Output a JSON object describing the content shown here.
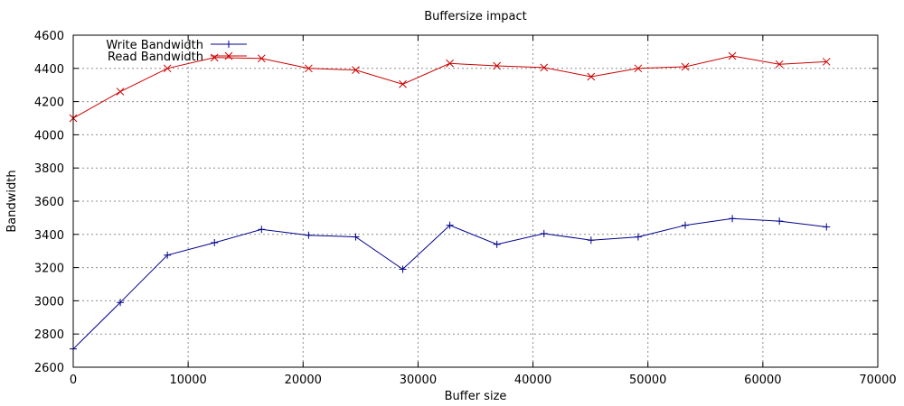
{
  "chart_data": {
    "type": "line",
    "title": "Buffersize impact",
    "xlabel": "Buffer size",
    "ylabel": "Bandwidth",
    "xlim": [
      0,
      70000
    ],
    "ylim": [
      2600,
      4600
    ],
    "x_ticks": [
      0,
      10000,
      20000,
      30000,
      40000,
      50000,
      60000,
      70000
    ],
    "y_ticks": [
      2600,
      2800,
      3000,
      3200,
      3400,
      3600,
      3800,
      4000,
      4200,
      4400,
      4600
    ],
    "grid": true,
    "legend_position": "top-left",
    "series": [
      {
        "name": "Write Bandwidth",
        "color": "#00008b",
        "marker": "plus",
        "x": [
          0,
          4096,
          8192,
          12288,
          16384,
          20480,
          24576,
          28672,
          32768,
          36864,
          40960,
          45056,
          49152,
          53248,
          57344,
          61440,
          65536
        ],
        "y": [
          2710,
          2990,
          3275,
          3350,
          3430,
          3395,
          3385,
          3190,
          3455,
          3340,
          3405,
          3365,
          3385,
          3455,
          3495,
          3480,
          3445
        ]
      },
      {
        "name": "Read Bandwidth",
        "color": "#cc0000",
        "marker": "cross",
        "x": [
          0,
          4096,
          8192,
          12288,
          16384,
          20480,
          24576,
          28672,
          32768,
          36864,
          40960,
          45056,
          49152,
          53248,
          57344,
          61440,
          65536
        ],
        "y": [
          4100,
          4260,
          4400,
          4465,
          4460,
          4400,
          4390,
          4305,
          4430,
          4415,
          4405,
          4350,
          4400,
          4410,
          4475,
          4425,
          4440
        ]
      }
    ]
  }
}
